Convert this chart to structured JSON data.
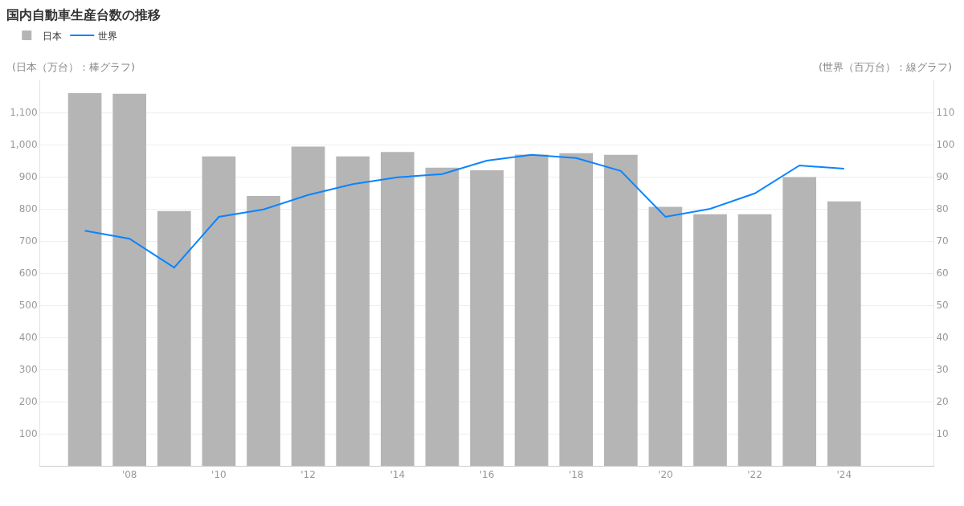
{
  "chart_data": {
    "type": "bar",
    "title": "国内自動車生産台数の推移",
    "ylabel": "(日本（万台）：棒グラフ)",
    "y2label": "(世界（百万台）：線グラフ)",
    "x": [
      2007,
      2008,
      2009,
      2010,
      2011,
      2012,
      2013,
      2014,
      2015,
      2016,
      2017,
      2018,
      2019,
      2020,
      2021,
      2022,
      2023,
      2024
    ],
    "series": [
      {
        "name": "日本",
        "color": "#b5b5b5",
        "values": [
          1160,
          1158,
          793,
          963,
          840,
          994,
          963,
          977,
          928,
          920,
          969,
          973,
          968,
          806,
          783,
          783,
          899,
          823
        ]
      },
      {
        "name": "世界",
        "type": "line",
        "axis": "y2",
        "color": "#0a84ff",
        "values": [
          73.2,
          70.7,
          61.7,
          77.5,
          79.8,
          84.3,
          87.7,
          89.8,
          90.8,
          95.0,
          96.8,
          95.8,
          91.8,
          77.5,
          80.0,
          84.8,
          93.5,
          92.5
        ]
      }
    ],
    "xlim": [
      2006,
      2026
    ],
    "xticks": [
      {
        "value": 2008,
        "label": "'08"
      },
      {
        "value": 2010,
        "label": "'10"
      },
      {
        "value": 2012,
        "label": "'12"
      },
      {
        "value": 2014,
        "label": "'14"
      },
      {
        "value": 2016,
        "label": "'16"
      },
      {
        "value": 2018,
        "label": "'18"
      },
      {
        "value": 2020,
        "label": "'20"
      },
      {
        "value": 2022,
        "label": "'22"
      },
      {
        "value": 2024,
        "label": "'24"
      }
    ],
    "ylim": [
      0,
      1200
    ],
    "yticks": [
      100,
      200,
      300,
      400,
      500,
      600,
      700,
      800,
      900,
      {
        "value": 1000,
        "label": "1,000"
      },
      {
        "value": 1100,
        "label": "1,100"
      }
    ],
    "y2lim": [
      0,
      120
    ],
    "y2ticks": [
      10,
      20,
      30,
      40,
      50,
      60,
      70,
      80,
      90,
      100,
      110
    ],
    "grid": "y",
    "legend": "top left"
  }
}
